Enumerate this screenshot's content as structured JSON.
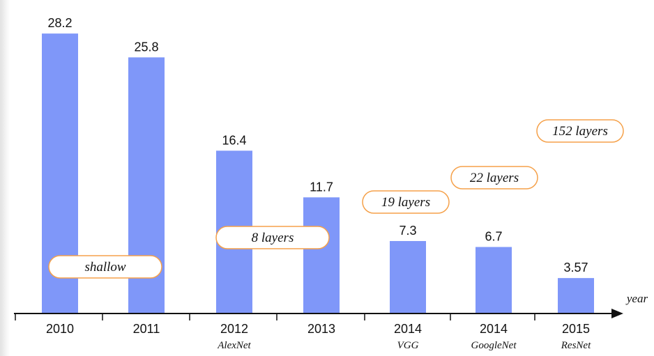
{
  "chart_data": {
    "type": "bar",
    "categories": [
      "2010",
      "2011",
      "2012",
      "2013",
      "2014",
      "2014",
      "2015"
    ],
    "sublabels": [
      "",
      "",
      "AlexNet",
      "",
      "VGG",
      "GoogleNet",
      "ResNet"
    ],
    "values": [
      28.2,
      25.8,
      16.4,
      11.7,
      7.3,
      6.7,
      3.57
    ],
    "value_labels": [
      "28.2",
      "25.8",
      "16.4",
      "11.7",
      "7.3",
      "6.7",
      "3.57"
    ],
    "xlabel": "year",
    "ylim": [
      0,
      30
    ],
    "grid": false,
    "bar_color": "#7f97f9",
    "annotations": [
      {
        "text": "shallow",
        "category_index": 0
      },
      {
        "text": "8 layers",
        "category_index": 2
      },
      {
        "text": "19 layers",
        "category_index": 4
      },
      {
        "text": "22 layers",
        "category_index": 5
      },
      {
        "text": "152 layers",
        "category_index": 6
      }
    ],
    "annotation_border_color": "#f5a14a"
  }
}
